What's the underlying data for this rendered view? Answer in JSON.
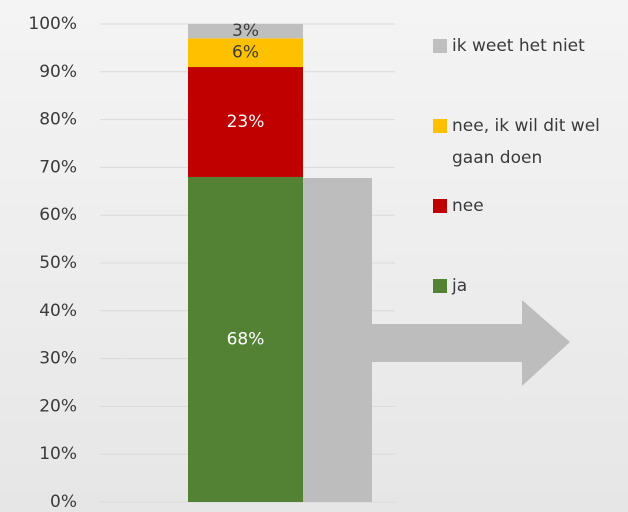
{
  "chart_data": {
    "type": "stacked_bar",
    "categories": [
      null
    ],
    "series": [
      {
        "name": "ja",
        "color": "#548235",
        "values": [
          68
        ],
        "value_labels": [
          "68%"
        ]
      },
      {
        "name": "nee",
        "color": "#c00000",
        "values": [
          23
        ],
        "value_labels": [
          "23%"
        ]
      },
      {
        "name": "nee, ik wil dit wel gaan doen",
        "color": "#ffc000",
        "values": [
          6
        ],
        "value_labels": [
          "6%"
        ]
      },
      {
        "name": "ik weet het niet",
        "color": "#bfbfbf",
        "values": [
          3
        ],
        "value_labels": [
          "3%"
        ]
      }
    ],
    "ylim": [
      0,
      100
    ],
    "yticks": [
      {
        "value": 0,
        "label": "0%"
      },
      {
        "value": 10,
        "label": "10%"
      },
      {
        "value": 20,
        "label": "20%"
      },
      {
        "value": 30,
        "label": "30%"
      },
      {
        "value": 40,
        "label": "40%"
      },
      {
        "value": 50,
        "label": "50%"
      },
      {
        "value": 60,
        "label": "60%"
      },
      {
        "value": 70,
        "label": "70%"
      },
      {
        "value": 80,
        "label": "80%"
      },
      {
        "value": 90,
        "label": "90%"
      },
      {
        "value": 100,
        "label": "100%"
      }
    ],
    "grid": true,
    "legend": "right"
  }
}
